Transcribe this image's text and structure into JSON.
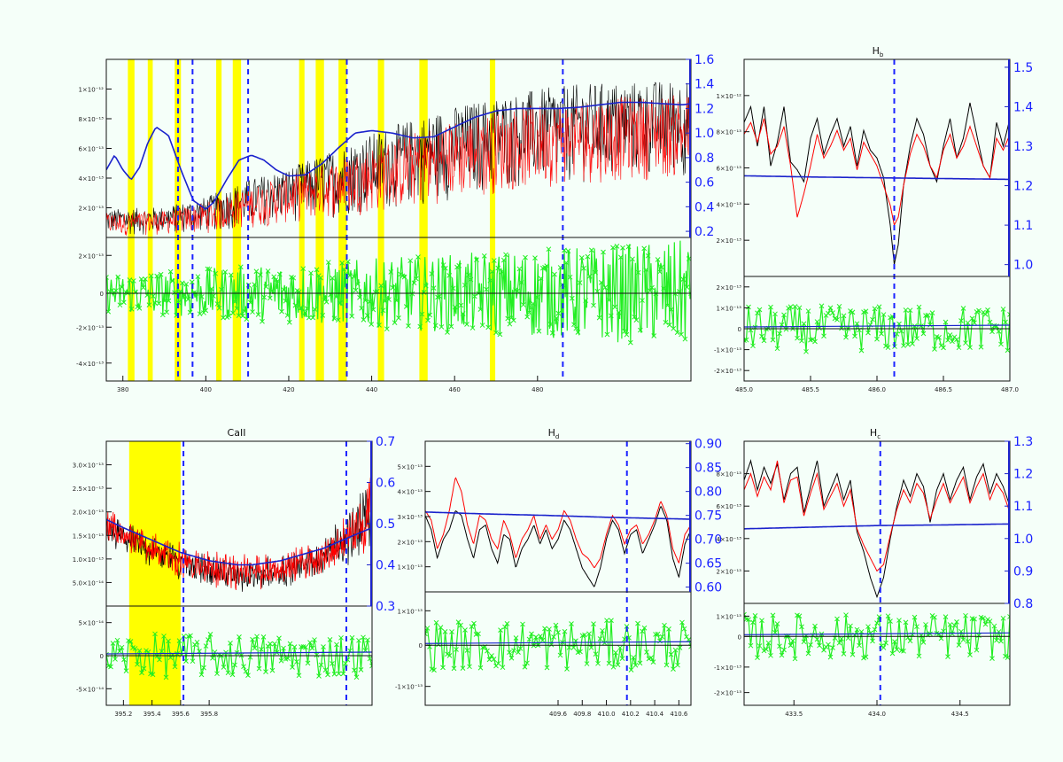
{
  "chart_data": [
    {
      "type": "line",
      "title": "",
      "xlim": [
        376,
        517
      ],
      "ylim": [
        0.15,
        1.6
      ],
      "xticks": [
        "380",
        "400",
        "420",
        "440",
        "460",
        "480"
      ],
      "yticks_left": [
        "2×10⁻¹³",
        "4×10⁻¹³",
        "6×10⁻¹³",
        "8×10⁻¹³",
        "1×10⁻¹²"
      ],
      "yticks_right": [
        "0.2",
        "0.4",
        "0.6",
        "0.8",
        "1.0",
        "1.2",
        "1.4",
        "1.6"
      ],
      "residual_yticks": [
        "2×10⁻¹³",
        "0",
        "-2×10⁻¹³",
        "-4×10⁻¹³"
      ],
      "residual_ylim": [
        -5.5,
        3.5
      ],
      "blue_curve": {
        "x": [
          376,
          378,
          380,
          382,
          384,
          386,
          388,
          391,
          394,
          397,
          400,
          402,
          405,
          408,
          411,
          414,
          417,
          420,
          424,
          428,
          432,
          436,
          440,
          445,
          450,
          455,
          460,
          465,
          470,
          475,
          480,
          485,
          490,
          495,
          500,
          505,
          510,
          515,
          517
        ],
        "y": [
          0.7,
          0.82,
          0.7,
          0.62,
          0.72,
          0.92,
          1.05,
          0.98,
          0.7,
          0.45,
          0.38,
          0.44,
          0.62,
          0.78,
          0.82,
          0.78,
          0.7,
          0.65,
          0.66,
          0.75,
          0.88,
          1.0,
          1.02,
          1.0,
          0.96,
          0.97,
          1.05,
          1.13,
          1.18,
          1.2,
          1.2,
          1.2,
          1.21,
          1.23,
          1.25,
          1.25,
          1.24,
          1.23,
          1.24
        ]
      },
      "obs_envelope_top": {
        "x": [
          376,
          390,
          400,
          410,
          420,
          430,
          440,
          450,
          460,
          470,
          480,
          490,
          500,
          510,
          517
        ],
        "y": [
          0.38,
          0.4,
          0.48,
          0.62,
          0.72,
          0.85,
          1.0,
          1.12,
          1.22,
          1.3,
          1.36,
          1.4,
          1.42,
          1.43,
          1.45
        ]
      },
      "obs_envelope_bottom": {
        "x": [
          376,
          390,
          400,
          410,
          420,
          430,
          440,
          450,
          460,
          470,
          480,
          490,
          500,
          510,
          517
        ],
        "y": [
          0.16,
          0.17,
          0.18,
          0.22,
          0.26,
          0.3,
          0.34,
          0.38,
          0.45,
          0.5,
          0.55,
          0.58,
          0.6,
          0.62,
          0.62
        ]
      },
      "yellow_bands": [
        [
          381.2,
          382.8
        ],
        [
          386.0,
          387.2
        ],
        [
          392.5,
          394.0
        ],
        [
          402.5,
          403.8
        ],
        [
          406.5,
          408.5
        ],
        [
          422.5,
          423.8
        ],
        [
          426.5,
          428.5
        ],
        [
          432.0,
          434.0
        ],
        [
          441.5,
          443.0
        ],
        [
          451.5,
          453.5
        ],
        [
          468.5,
          469.8
        ]
      ],
      "dashed_lines": [
        393.3,
        396.8,
        410.2,
        434.0,
        486.1
      ],
      "residual_center": 0
    },
    {
      "type": "line",
      "title": "Hb",
      "xlim": [
        485.0,
        487.0
      ],
      "ylim": [
        0.97,
        1.52
      ],
      "xticks": [
        "485.0",
        "485.5",
        "486.0",
        "486.5",
        "487.0"
      ],
      "yticks_left": [
        "2×10⁻¹³",
        "4×10⁻¹³",
        "6×10⁻¹³",
        "8×10⁻¹³",
        "1×10⁻¹²"
      ],
      "yticks_right": [
        "1.0",
        "1.1",
        "1.2",
        "1.3",
        "1.4",
        "1.5"
      ],
      "residual_yticks": [
        "2×10⁻¹³",
        "1×10⁻¹³",
        "0",
        "-1×10⁻¹³",
        "-2×10⁻¹³"
      ],
      "residual_ylim": [
        -2.5,
        2.5
      ],
      "black_curve": {
        "x": [
          485.0,
          485.05,
          485.1,
          485.15,
          485.2,
          485.25,
          485.3,
          485.35,
          485.4,
          485.45,
          485.5,
          485.55,
          485.6,
          485.65,
          485.7,
          485.75,
          485.8,
          485.85,
          485.9,
          485.95,
          486.0,
          486.05,
          486.1,
          486.13,
          486.16,
          486.2,
          486.25,
          486.3,
          486.35,
          486.4,
          486.45,
          486.5,
          486.55,
          486.6,
          486.65,
          486.7,
          486.75,
          486.8,
          486.85,
          486.9,
          486.95,
          487.0
        ],
        "y": [
          1.36,
          1.4,
          1.3,
          1.4,
          1.25,
          1.31,
          1.4,
          1.26,
          1.24,
          1.21,
          1.32,
          1.37,
          1.28,
          1.33,
          1.37,
          1.3,
          1.35,
          1.25,
          1.34,
          1.29,
          1.27,
          1.22,
          1.1,
          1.0,
          1.05,
          1.2,
          1.3,
          1.37,
          1.33,
          1.25,
          1.21,
          1.3,
          1.37,
          1.27,
          1.32,
          1.41,
          1.33,
          1.25,
          1.22,
          1.36,
          1.3,
          1.37
        ]
      },
      "red_curve": {
        "x": [
          485.0,
          485.05,
          485.1,
          485.15,
          485.2,
          485.25,
          485.3,
          485.35,
          485.4,
          485.45,
          485.5,
          485.55,
          485.6,
          485.65,
          485.7,
          485.75,
          485.8,
          485.85,
          485.9,
          485.95,
          486.0,
          486.05,
          486.1,
          486.13,
          486.16,
          486.2,
          486.25,
          486.3,
          486.35,
          486.4,
          486.45,
          486.5,
          486.55,
          486.6,
          486.65,
          486.7,
          486.75,
          486.8,
          486.85,
          486.9,
          486.95,
          487.0
        ],
        "y": [
          1.33,
          1.36,
          1.31,
          1.37,
          1.28,
          1.3,
          1.35,
          1.25,
          1.12,
          1.18,
          1.25,
          1.33,
          1.27,
          1.3,
          1.34,
          1.29,
          1.32,
          1.24,
          1.31,
          1.28,
          1.25,
          1.2,
          1.15,
          1.1,
          1.12,
          1.2,
          1.28,
          1.33,
          1.3,
          1.25,
          1.22,
          1.29,
          1.33,
          1.27,
          1.3,
          1.35,
          1.3,
          1.25,
          1.22,
          1.32,
          1.29,
          1.33
        ]
      },
      "blue_curve": {
        "x": [
          485.0,
          485.5,
          486.0,
          486.5,
          487.0
        ],
        "y": [
          1.225,
          1.222,
          1.22,
          1.218,
          1.216
        ]
      },
      "dashed_lines": [
        486.13
      ],
      "residual_center": 0
    },
    {
      "type": "line",
      "title": "CaII",
      "xlim": [
        395.08,
        396.94
      ],
      "ylim": [
        0.3,
        0.7
      ],
      "xticks": [
        "395.2",
        "395.4",
        "395.6",
        "395.8"
      ],
      "yticks_left": [
        "5.0×10⁻¹⁴",
        "1.0×10⁻¹³",
        "1.5×10⁻¹³",
        "2.0×10⁻¹³",
        "2.5×10⁻¹³",
        "3.0×10⁻¹³"
      ],
      "yticks_right": [
        "0.3",
        "0.4",
        "0.5",
        "0.6",
        "0.7"
      ],
      "residual_yticks": [
        "5×10⁻¹⁴",
        "0",
        "-5×10⁻¹⁴"
      ],
      "residual_ylim": [
        -9,
        9
      ],
      "blue_curve": {
        "x": [
          395.08,
          395.2,
          395.3,
          395.4,
          395.5,
          395.6,
          395.7,
          395.8,
          395.9,
          396.0,
          396.1,
          396.2,
          396.3,
          396.4,
          396.5,
          396.6,
          396.7,
          396.8,
          396.94
        ],
        "y": [
          0.51,
          0.49,
          0.475,
          0.46,
          0.445,
          0.43,
          0.42,
          0.41,
          0.405,
          0.4,
          0.4,
          0.405,
          0.41,
          0.42,
          0.43,
          0.44,
          0.455,
          0.47,
          0.49
        ]
      },
      "yellow_bands": [
        [
          395.24,
          395.6
        ]
      ],
      "dashed_lines": [
        395.62,
        396.76
      ],
      "residual_center": 0
    },
    {
      "type": "line",
      "title": "Hd",
      "xlim": [
        408.5,
        410.7
      ],
      "ylim": [
        0.59,
        0.905
      ],
      "xticks": [
        "409.6",
        "409.8",
        "410.0",
        "410.2",
        "410.4",
        "410.6"
      ],
      "yticks_left": [
        "1×10⁻¹³",
        "2×10⁻¹³",
        "3×10⁻¹³",
        "4×10⁻¹³",
        "5×10⁻¹³"
      ],
      "yticks_right": [
        "0.60",
        "0.65",
        "0.70",
        "0.75",
        "0.80",
        "0.85",
        "0.90"
      ],
      "residual_yticks": [
        "1×10⁻¹³",
        "0",
        "-1×10⁻¹³"
      ],
      "residual_ylim": [
        -1.8,
        1.6
      ],
      "black_curve": {
        "x": [
          408.5,
          408.55,
          408.6,
          408.65,
          408.7,
          408.75,
          408.8,
          408.85,
          408.9,
          408.95,
          409.0,
          409.05,
          409.1,
          409.15,
          409.2,
          409.25,
          409.3,
          409.35,
          409.4,
          409.45,
          409.5,
          409.55,
          409.6,
          409.65,
          409.7,
          409.75,
          409.8,
          409.85,
          409.9,
          409.95,
          410.0,
          410.05,
          410.1,
          410.15,
          410.2,
          410.25,
          410.3,
          410.35,
          410.4,
          410.45,
          410.5,
          410.55,
          410.6,
          410.65,
          410.7
        ],
        "y": [
          0.75,
          0.72,
          0.66,
          0.7,
          0.72,
          0.76,
          0.75,
          0.7,
          0.66,
          0.72,
          0.73,
          0.68,
          0.65,
          0.71,
          0.7,
          0.64,
          0.68,
          0.7,
          0.73,
          0.69,
          0.72,
          0.68,
          0.7,
          0.74,
          0.72,
          0.68,
          0.64,
          0.62,
          0.6,
          0.64,
          0.7,
          0.74,
          0.72,
          0.67,
          0.71,
          0.72,
          0.67,
          0.7,
          0.73,
          0.77,
          0.74,
          0.66,
          0.62,
          0.69,
          0.72
        ]
      },
      "red_curve": {
        "x": [
          408.5,
          408.55,
          408.6,
          408.65,
          408.7,
          408.75,
          408.8,
          408.85,
          408.9,
          408.95,
          409.0,
          409.05,
          409.1,
          409.15,
          409.2,
          409.25,
          409.3,
          409.35,
          409.4,
          409.45,
          409.5,
          409.55,
          409.6,
          409.65,
          409.7,
          409.75,
          409.8,
          409.85,
          409.9,
          409.95,
          410.0,
          410.05,
          410.1,
          410.15,
          410.2,
          410.25,
          410.3,
          410.35,
          410.4,
          410.45,
          410.5,
          410.55,
          410.6,
          410.65,
          410.7
        ],
        "y": [
          0.76,
          0.74,
          0.68,
          0.71,
          0.76,
          0.83,
          0.8,
          0.73,
          0.69,
          0.75,
          0.74,
          0.7,
          0.68,
          0.74,
          0.71,
          0.66,
          0.7,
          0.72,
          0.75,
          0.7,
          0.73,
          0.7,
          0.72,
          0.76,
          0.74,
          0.7,
          0.67,
          0.66,
          0.64,
          0.66,
          0.71,
          0.75,
          0.73,
          0.69,
          0.72,
          0.73,
          0.69,
          0.71,
          0.74,
          0.78,
          0.75,
          0.68,
          0.65,
          0.71,
          0.73
        ]
      },
      "blue_curve": {
        "x": [
          408.5,
          409.0,
          409.5,
          410.0,
          410.7
        ],
        "y": [
          0.757,
          0.753,
          0.75,
          0.746,
          0.742
        ]
      },
      "dashed_lines": [
        410.17
      ],
      "residual_center": 0
    },
    {
      "type": "line",
      "title": "Hc",
      "xlim": [
        433.2,
        434.8
      ],
      "ylim": [
        0.8,
        1.3
      ],
      "xticks": [
        "433.5",
        "434.0",
        "434.5"
      ],
      "yticks_left": [
        "2×10⁻¹³",
        "4×10⁻¹³",
        "6×10⁻¹³",
        "8×10⁻¹³"
      ],
      "yticks_right": [
        "0.8",
        "0.9",
        "1.0",
        "1.1",
        "1.2",
        "1.3"
      ],
      "residual_yticks": [
        "1×10⁻¹³",
        "0",
        "-1×10⁻¹³",
        "-2×10⁻¹³"
      ],
      "residual_ylim": [
        -2.5,
        1.2
      ],
      "black_curve": {
        "x": [
          433.2,
          433.24,
          433.28,
          433.32,
          433.36,
          433.4,
          433.44,
          433.48,
          433.52,
          433.56,
          433.6,
          433.64,
          433.68,
          433.72,
          433.76,
          433.8,
          433.84,
          433.88,
          433.92,
          433.96,
          434.0,
          434.04,
          434.08,
          434.12,
          434.16,
          434.2,
          434.24,
          434.28,
          434.32,
          434.36,
          434.4,
          434.44,
          434.48,
          434.52,
          434.56,
          434.6,
          434.64,
          434.68,
          434.72,
          434.76,
          434.8
        ],
        "y": [
          1.18,
          1.24,
          1.15,
          1.22,
          1.17,
          1.23,
          1.12,
          1.2,
          1.22,
          1.08,
          1.16,
          1.24,
          1.1,
          1.15,
          1.2,
          1.12,
          1.18,
          1.02,
          0.96,
          0.88,
          0.82,
          0.88,
          1.0,
          1.1,
          1.18,
          1.13,
          1.2,
          1.16,
          1.05,
          1.15,
          1.2,
          1.12,
          1.18,
          1.22,
          1.12,
          1.19,
          1.23,
          1.14,
          1.2,
          1.16,
          1.1
        ]
      },
      "red_curve": {
        "x": [
          433.2,
          433.24,
          433.28,
          433.32,
          433.36,
          433.4,
          433.44,
          433.48,
          433.52,
          433.56,
          433.6,
          433.64,
          433.68,
          433.72,
          433.76,
          433.8,
          433.84,
          433.88,
          433.92,
          433.96,
          434.0,
          434.04,
          434.08,
          434.12,
          434.16,
          434.2,
          434.24,
          434.28,
          434.32,
          434.36,
          434.4,
          434.44,
          434.48,
          434.52,
          434.56,
          434.6,
          434.64,
          434.68,
          434.72,
          434.76,
          434.8
        ],
        "y": [
          1.15,
          1.2,
          1.13,
          1.19,
          1.15,
          1.24,
          1.11,
          1.18,
          1.19,
          1.07,
          1.14,
          1.2,
          1.09,
          1.13,
          1.17,
          1.1,
          1.15,
          1.03,
          0.98,
          0.94,
          0.9,
          0.92,
          1.01,
          1.09,
          1.15,
          1.11,
          1.17,
          1.14,
          1.06,
          1.12,
          1.17,
          1.11,
          1.15,
          1.19,
          1.11,
          1.16,
          1.2,
          1.12,
          1.17,
          1.14,
          1.08
        ]
      },
      "blue_curve": {
        "x": [
          433.2,
          433.6,
          434.0,
          434.4,
          434.8
        ],
        "y": [
          1.03,
          1.035,
          1.04,
          1.042,
          1.045
        ]
      },
      "dashed_lines": [
        434.02
      ],
      "residual_center": 0
    }
  ],
  "colors": {
    "background": "#f5fff9",
    "axis": "#111111",
    "observed": "#000000",
    "model": "#ff0000",
    "continuum": "#1a22cc",
    "residual": "#22ee22",
    "band": "#ffff00",
    "marker": "#1a22ff",
    "right_axis_text": "#1a22ff"
  }
}
